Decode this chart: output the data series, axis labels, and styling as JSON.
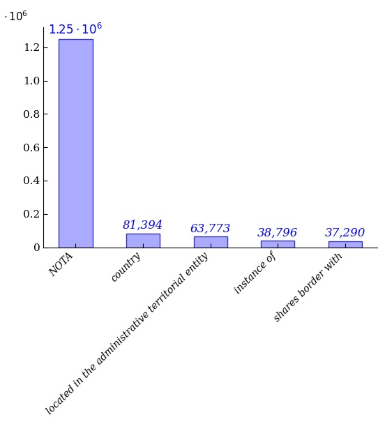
{
  "categories": [
    "NOTA",
    "country",
    "located in the administrative territorial entity",
    "instance of",
    "shares border with"
  ],
  "values": [
    1250000,
    81394,
    63773,
    38796,
    37290
  ],
  "bar_color": "#aaaaff",
  "bar_edge_color": "#3333bb",
  "annotation_color": "#0000ff",
  "ylim": [
    0,
    1320000
  ],
  "background_color": "#ffffff",
  "annotation_fontsize": 12,
  "tick_fontsize": 11,
  "label_fontsize": 10
}
